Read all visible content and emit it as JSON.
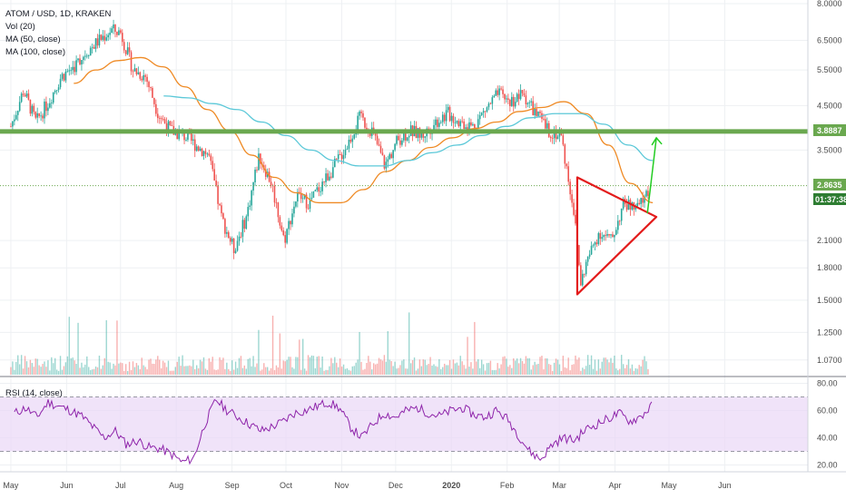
{
  "legend": {
    "symbol": "ATOM / USD, 1D, KRAKEN",
    "vol": "Vol (20)",
    "ma50": "MA (50, close)",
    "ma100": "MA (100, close)",
    "rsi": "RSI (14, close)"
  },
  "colors": {
    "up": "#26a69a",
    "down": "#ef5350",
    "ma50": "#ef8a24",
    "ma100": "#5bc8d8",
    "support": "#6aa84f",
    "triangle": "#e31b1b",
    "arrow": "#22cc22",
    "rsi": "#8e24aa",
    "rsi_band": "#e9d7f7",
    "dotted": "#6aa84f"
  },
  "tags": {
    "support": "3.8887",
    "current": "2.8635",
    "countdown": "01:37:38"
  },
  "chart_data": [
    {
      "type": "candlestick",
      "title": "ATOM / USD, 1D, KRAKEN",
      "y_scale": "log",
      "ylim": [
        1.0,
        8.0
      ],
      "y_ticks": [
        "8.0000",
        "6.5000",
        "5.5000",
        "4.5000",
        "3.5000",
        "2.1000",
        "1.8000",
        "1.5000",
        "1.2500",
        "1.0700"
      ],
      "x_ticks": [
        "May",
        "Jun",
        "Jul",
        "Aug",
        "Sep",
        "Oct",
        "Nov",
        "Dec",
        "2020",
        "Feb",
        "Mar",
        "Apr",
        "May",
        "Jun"
      ],
      "close_series": [
        {
          "date": "2019-05-01",
          "close": 4.0
        },
        {
          "date": "2019-05-08",
          "close": 4.9
        },
        {
          "date": "2019-05-15",
          "close": 4.1
        },
        {
          "date": "2019-05-22",
          "close": 4.6
        },
        {
          "date": "2019-05-29",
          "close": 5.3
        },
        {
          "date": "2019-06-05",
          "close": 5.6
        },
        {
          "date": "2019-06-12",
          "close": 6.1
        },
        {
          "date": "2019-06-19",
          "close": 6.5
        },
        {
          "date": "2019-06-26",
          "close": 6.9
        },
        {
          "date": "2019-07-01",
          "close": 6.8
        },
        {
          "date": "2019-07-08",
          "close": 5.5
        },
        {
          "date": "2019-07-15",
          "close": 5.3
        },
        {
          "date": "2019-07-22",
          "close": 4.3
        },
        {
          "date": "2019-07-29",
          "close": 3.9
        },
        {
          "date": "2019-08-05",
          "close": 3.8
        },
        {
          "date": "2019-08-12",
          "close": 3.6
        },
        {
          "date": "2019-08-19",
          "close": 3.4
        },
        {
          "date": "2019-08-26",
          "close": 2.4
        },
        {
          "date": "2019-09-02",
          "close": 2.0
        },
        {
          "date": "2019-09-09",
          "close": 2.4
        },
        {
          "date": "2019-09-16",
          "close": 3.4
        },
        {
          "date": "2019-09-23",
          "close": 2.9
        },
        {
          "date": "2019-09-30",
          "close": 2.1
        },
        {
          "date": "2019-10-07",
          "close": 2.7
        },
        {
          "date": "2019-10-14",
          "close": 2.6
        },
        {
          "date": "2019-10-21",
          "close": 2.9
        },
        {
          "date": "2019-10-28",
          "close": 3.2
        },
        {
          "date": "2019-11-04",
          "close": 3.6
        },
        {
          "date": "2019-11-11",
          "close": 4.2
        },
        {
          "date": "2019-11-18",
          "close": 3.9
        },
        {
          "date": "2019-11-25",
          "close": 3.2
        },
        {
          "date": "2019-12-02",
          "close": 3.7
        },
        {
          "date": "2019-12-09",
          "close": 3.9
        },
        {
          "date": "2019-12-16",
          "close": 3.8
        },
        {
          "date": "2019-12-23",
          "close": 4.1
        },
        {
          "date": "2019-12-30",
          "close": 4.3
        },
        {
          "date": "2020-01-06",
          "close": 4.1
        },
        {
          "date": "2020-01-13",
          "close": 4.0
        },
        {
          "date": "2020-01-20",
          "close": 4.4
        },
        {
          "date": "2020-01-27",
          "close": 4.8
        },
        {
          "date": "2020-02-03",
          "close": 4.6
        },
        {
          "date": "2020-02-10",
          "close": 4.8
        },
        {
          "date": "2020-02-17",
          "close": 4.3
        },
        {
          "date": "2020-02-24",
          "close": 3.9
        },
        {
          "date": "2020-03-02",
          "close": 3.8
        },
        {
          "date": "2020-03-09",
          "close": 2.5
        },
        {
          "date": "2020-03-13",
          "close": 1.65
        },
        {
          "date": "2020-03-16",
          "close": 1.85
        },
        {
          "date": "2020-03-23",
          "close": 2.2
        },
        {
          "date": "2020-03-30",
          "close": 2.1
        },
        {
          "date": "2020-04-06",
          "close": 2.6
        },
        {
          "date": "2020-04-13",
          "close": 2.5
        },
        {
          "date": "2020-04-20",
          "close": 2.8
        }
      ],
      "ma50": [
        5.1,
        5.5,
        5.8,
        5.9,
        5.6,
        5.0,
        4.4,
        3.9,
        3.4,
        3.0,
        2.75,
        2.6,
        2.6,
        2.8,
        3.1,
        3.3,
        3.55,
        3.75,
        3.95,
        4.1,
        4.35,
        4.45,
        4.6,
        4.3,
        3.6,
        2.9,
        2.6
      ],
      "ma100": [
        4.75,
        4.7,
        4.55,
        4.4,
        4.1,
        3.8,
        3.5,
        3.3,
        3.2,
        3.2,
        3.3,
        3.45,
        3.6,
        3.8,
        4.0,
        4.2,
        4.3,
        4.3,
        4.05,
        3.6,
        3.3
      ],
      "annotations": {
        "support_level": 3.8887,
        "current_price": 2.8635
      },
      "triangle": {
        "upper_start": [
          3.0
        ],
        "lower_start": [
          1.55
        ],
        "apex": [
          2.4
        ]
      },
      "projection_target": 3.8887
    },
    {
      "type": "bar",
      "title": "Vol (20)",
      "note": "daily volume bars, colored by candle direction"
    },
    {
      "type": "line",
      "title": "RSI (14, close)",
      "ylim": [
        15,
        85
      ],
      "y_ticks": [
        "80.00",
        "60.00",
        "40.00",
        "20.00"
      ],
      "band": [
        30,
        70
      ],
      "series": [
        {
          "values": [
            58,
            62,
            55,
            66,
            63,
            60,
            56,
            48,
            40,
            45,
            35,
            38,
            33,
            32,
            28,
            22,
            25,
            50,
            68,
            60,
            55,
            50,
            45,
            48,
            52,
            58,
            60,
            63,
            66,
            62,
            48,
            40,
            50,
            58,
            55,
            60,
            62,
            58,
            56,
            60,
            62,
            57,
            55,
            60,
            54,
            42,
            30,
            24,
            35,
            40,
            38,
            46,
            50,
            54,
            58,
            52,
            56,
            64
          ]
        }
      ]
    }
  ]
}
